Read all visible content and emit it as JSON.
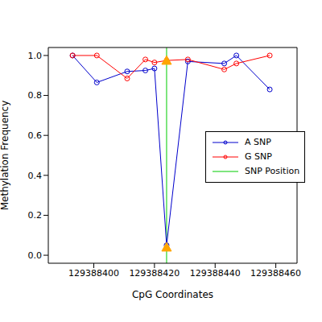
{
  "chart_data": {
    "type": "line",
    "x_label": "CpG Coordinates",
    "y_label": "Methylation Frequency",
    "xlim": [
      129388385,
      129388467
    ],
    "xticks": [
      129388400,
      129388420,
      129388440,
      129388460
    ],
    "ylim": [
      -0.04,
      1.04
    ],
    "yticks": [
      {
        "value": 0,
        "label": "0.0"
      },
      {
        "value": 0.2,
        "label": "0.2"
      },
      {
        "value": 0.4,
        "label": "0.4"
      },
      {
        "value": 0.6,
        "label": "0.6"
      },
      {
        "value": 0.8,
        "label": "0.8"
      },
      {
        "value": 1,
        "label": "1.0"
      }
    ],
    "legend": "right",
    "x": [
      129388393,
      129388401,
      129388411,
      129388417,
      129388420,
      129388424,
      129388431,
      129388443,
      129388447,
      129388458
    ],
    "series": [
      {
        "name": "A SNP",
        "color": "#0000cc",
        "marker": "open_circle",
        "values": [
          1.0,
          0.865,
          0.92,
          0.925,
          0.935,
          0.05,
          0.97,
          0.96,
          1.0,
          0.83
        ]
      },
      {
        "name": "G SNP",
        "color": "#ff0000",
        "marker": "open_circle",
        "values": [
          1.0,
          1.0,
          0.885,
          0.98,
          0.965,
          0.975,
          0.98,
          0.93,
          0.96,
          1.0
        ]
      }
    ],
    "snp": {
      "name": "SNP Position",
      "color": "#00cc00",
      "x": 129388424,
      "marker": "triangle",
      "marker_color": "#ffa500",
      "values": [
        0.04,
        0.975
      ]
    }
  }
}
